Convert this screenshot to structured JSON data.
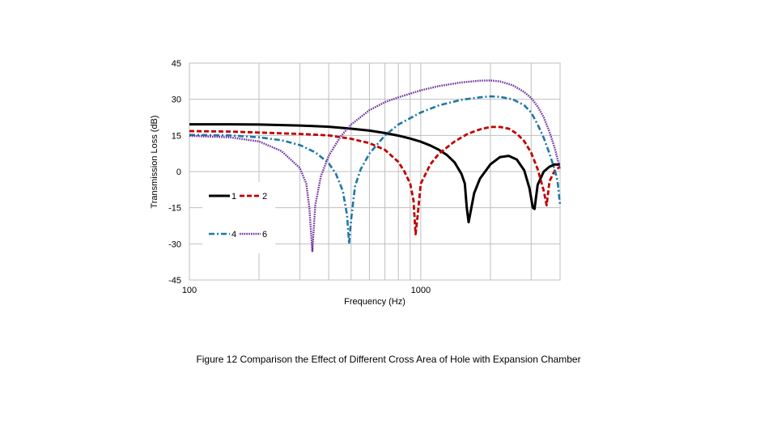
{
  "chart_data": {
    "type": "line",
    "title": "",
    "xlabel": "Frequency (Hz)",
    "ylabel": "Transmission Loss (dB)",
    "xscale": "log",
    "xlim": [
      100,
      4000
    ],
    "ylim": [
      -45,
      45
    ],
    "x_ticks": [
      100,
      1000
    ],
    "x_tick_labels": [
      "100",
      "1000"
    ],
    "y_ticks": [
      45,
      30,
      15,
      0,
      -15,
      -30,
      -45
    ],
    "y_tick_labels": [
      "45",
      "30",
      "15",
      "0",
      "-15",
      "-30",
      "-45"
    ],
    "grid": true,
    "legend_position": "lower-left inside plot",
    "series": [
      {
        "name": "1",
        "color": "#000000",
        "dash": "solid",
        "x": [
          100,
          150,
          200,
          300,
          400,
          500,
          600,
          700,
          800,
          900,
          1000,
          1100,
          1200,
          1300,
          1400,
          1500,
          1550,
          1580,
          1610,
          1700,
          1800,
          2000,
          2200,
          2400,
          2600,
          2800,
          2950,
          3050,
          3100,
          3200,
          3400,
          3600,
          3800,
          4000
        ],
        "y": [
          19.6,
          19.6,
          19.5,
          19.1,
          18.6,
          17.8,
          17.0,
          16.0,
          14.9,
          13.7,
          12.4,
          10.8,
          9.0,
          6.8,
          3.8,
          -1.0,
          -5.0,
          -15.0,
          -21.0,
          -9.0,
          -3.0,
          3.0,
          6.0,
          6.5,
          5.0,
          0.5,
          -7.0,
          -15.0,
          -15.5,
          -5.5,
          0.0,
          2.0,
          3.0,
          2.8
        ]
      },
      {
        "name": "2",
        "color": "#c00000",
        "dash": "dash",
        "x": [
          100,
          150,
          200,
          300,
          400,
          500,
          600,
          700,
          800,
          850,
          900,
          930,
          950,
          970,
          1000,
          1100,
          1200,
          1400,
          1600,
          1800,
          2000,
          2200,
          2400,
          2600,
          2800,
          3000,
          3200,
          3400,
          3500,
          3600,
          3800,
          4000
        ],
        "y": [
          16.8,
          16.6,
          16.2,
          15.6,
          15.0,
          13.6,
          11.8,
          9.0,
          4.0,
          0.0,
          -5.0,
          -12.0,
          -26.0,
          -18.0,
          -5.0,
          3.0,
          7.5,
          12.5,
          15.7,
          17.5,
          18.5,
          18.5,
          17.8,
          15.8,
          12.6,
          7.8,
          1.0,
          -8.0,
          -14.0,
          -4.0,
          0.5,
          2.0
        ]
      },
      {
        "name": "4",
        "color": "#1f77a6",
        "dash": "dashdot",
        "x": [
          100,
          150,
          200,
          250,
          300,
          350,
          400,
          430,
          460,
          480,
          490,
          500,
          520,
          550,
          600,
          700,
          800,
          1000,
          1200,
          1500,
          1800,
          2000,
          2200,
          2500,
          2800,
          3000,
          3200,
          3400,
          3600,
          3800,
          3900,
          4000
        ],
        "y": [
          15.2,
          15.0,
          14.2,
          13.0,
          11.0,
          8.0,
          3.5,
          -1.0,
          -8.0,
          -18.0,
          -30.0,
          -20.0,
          -6.0,
          1.0,
          7.5,
          15.0,
          19.5,
          24.5,
          27.5,
          29.8,
          30.8,
          31.2,
          31.0,
          30.0,
          27.5,
          24.5,
          19.5,
          14.0,
          7.5,
          0.5,
          -4.0,
          -14.0
        ]
      },
      {
        "name": "6",
        "color": "#7030a0",
        "dash": "dot",
        "x": [
          100,
          150,
          200,
          250,
          300,
          320,
          330,
          340,
          350,
          370,
          400,
          450,
          500,
          600,
          700,
          800,
          1000,
          1200,
          1500,
          1800,
          2000,
          2200,
          2500,
          2800,
          3000,
          3200,
          3400,
          3600,
          3800,
          4000
        ],
        "y": [
          14.8,
          14.2,
          12.5,
          8.5,
          1.5,
          -5.0,
          -15.0,
          -33.0,
          -14.0,
          -2.0,
          6.5,
          14.5,
          19.5,
          25.5,
          28.8,
          30.8,
          33.7,
          35.5,
          37.0,
          37.7,
          37.8,
          37.4,
          35.8,
          33.0,
          30.5,
          27.0,
          22.5,
          16.5,
          9.5,
          1.0
        ]
      }
    ],
    "caption": "Figure 12  Comparison the Effect of Different Cross Area of Hole with Expansion Chamber"
  }
}
